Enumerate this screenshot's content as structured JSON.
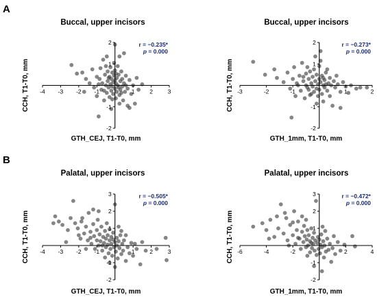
{
  "panel_labels": [
    "A",
    "B"
  ],
  "chart_data": [
    {
      "type": "scatter",
      "title": "Buccal, upper incisors",
      "xlabel": "GTH_CEJ, T1-T0, mm",
      "ylabel": "CCH, T1-T0, mm",
      "xlim": [
        -4,
        3
      ],
      "ylim": [
        -2,
        2
      ],
      "xticks": [
        -4,
        -3,
        -2,
        -1,
        1,
        2,
        3
      ],
      "yticks": [
        -2,
        -1,
        1,
        2
      ],
      "r_text": "r = −0.235*",
      "p_text": "p = 0.000",
      "points": [
        [
          -2.4,
          0.95
        ],
        [
          -2.1,
          0.55
        ],
        [
          -1.8,
          0.6
        ],
        [
          -1.6,
          0.3
        ],
        [
          -1.7,
          -0.3
        ],
        [
          -1.4,
          0.1
        ],
        [
          -1.25,
          0.75
        ],
        [
          -1.15,
          -0.1
        ],
        [
          -1.0,
          0.4
        ],
        [
          -1.0,
          -0.5
        ],
        [
          -0.9,
          -1.45
        ],
        [
          -0.85,
          0.3
        ],
        [
          -0.8,
          0.8
        ],
        [
          -0.75,
          -0.2
        ],
        [
          -0.7,
          0.1
        ],
        [
          -0.65,
          1.2
        ],
        [
          -0.6,
          -0.7
        ],
        [
          -0.55,
          0.5
        ],
        [
          -0.5,
          0.0
        ],
        [
          -0.5,
          0.9
        ],
        [
          -0.45,
          -0.35
        ],
        [
          -0.4,
          0.2
        ],
        [
          -0.4,
          0.65
        ],
        [
          -0.35,
          -0.1
        ],
        [
          -0.3,
          0.4
        ],
        [
          -0.3,
          -0.55
        ],
        [
          -0.25,
          0.05
        ],
        [
          -0.25,
          0.85
        ],
        [
          -0.2,
          -0.25
        ],
        [
          -0.2,
          0.3
        ],
        [
          -0.15,
          0.6
        ],
        [
          -0.15,
          -0.05
        ],
        [
          -0.1,
          0.15
        ],
        [
          -0.1,
          -0.4
        ],
        [
          -0.05,
          0.45
        ],
        [
          -0.05,
          1.05
        ],
        [
          0.0,
          -0.15
        ],
        [
          0.0,
          0.25
        ],
        [
          0.0,
          0.7
        ],
        [
          0.05,
          -0.6
        ],
        [
          0.05,
          0.1
        ],
        [
          0.1,
          0.35
        ],
        [
          0.1,
          -0.3
        ],
        [
          0.15,
          0.9
        ],
        [
          0.15,
          0.0
        ],
        [
          0.2,
          -0.1
        ],
        [
          0.2,
          0.5
        ],
        [
          0.25,
          1.35
        ],
        [
          0.25,
          -0.45
        ],
        [
          0.3,
          0.2
        ],
        [
          0.3,
          -0.2
        ],
        [
          0.35,
          0.65
        ],
        [
          0.4,
          -0.05
        ],
        [
          0.4,
          0.3
        ],
        [
          0.45,
          -0.7
        ],
        [
          0.5,
          0.1
        ],
        [
          0.5,
          1.5
        ],
        [
          0.55,
          -0.3
        ],
        [
          0.6,
          0.45
        ],
        [
          0.7,
          -0.15
        ],
        [
          0.7,
          -0.95
        ],
        [
          0.8,
          0.25
        ],
        [
          0.8,
          -1.05
        ],
        [
          0.9,
          -0.4
        ],
        [
          1.0,
          0.0
        ],
        [
          1.1,
          -0.85
        ],
        [
          1.2,
          0.35
        ],
        [
          1.3,
          -0.2
        ],
        [
          1.5,
          0.05
        ],
        [
          -0.6,
          -0.25
        ],
        [
          -0.35,
          0.35
        ],
        [
          0.05,
          0.55
        ],
        [
          0.35,
          -0.35
        ],
        [
          -0.15,
          -0.65
        ],
        [
          0.6,
          0.0
        ],
        [
          -0.9,
          0.05
        ],
        [
          -0.45,
          1.35
        ],
        [
          0.0,
          1.9
        ],
        [
          -0.2,
          -1.1
        ],
        [
          0.25,
          -0.85
        ]
      ]
    },
    {
      "type": "scatter",
      "title": "Buccal, upper incisors",
      "xlabel": "GTH_1mm, T1-T0, mm",
      "ylabel": "CCH, T1-T0, mm",
      "xlim": [
        -3,
        2
      ],
      "ylim": [
        -2,
        2
      ],
      "xticks": [
        -3,
        -2,
        -1,
        1,
        2
      ],
      "yticks": [
        -2,
        -1,
        1,
        2
      ],
      "r_text": "r = −0.273*",
      "p_text": "p = 0.000",
      "points": [
        [
          -2.5,
          1.1
        ],
        [
          -2.05,
          0.5
        ],
        [
          -1.7,
          0.75
        ],
        [
          -1.6,
          0.35
        ],
        [
          -1.35,
          0.15
        ],
        [
          -1.2,
          0.6
        ],
        [
          -1.1,
          -0.15
        ],
        [
          -1.0,
          0.3
        ],
        [
          -0.95,
          0.85
        ],
        [
          -0.9,
          -0.5
        ],
        [
          -0.85,
          0.1
        ],
        [
          -0.75,
          0.45
        ],
        [
          -0.7,
          -0.25
        ],
        [
          -0.65,
          1.05
        ],
        [
          -0.6,
          0.2
        ],
        [
          -0.55,
          -0.6
        ],
        [
          -0.5,
          0.55
        ],
        [
          -0.5,
          0.0
        ],
        [
          -0.45,
          0.85
        ],
        [
          -0.4,
          -0.2
        ],
        [
          -0.4,
          0.3
        ],
        [
          -0.35,
          0.65
        ],
        [
          -0.3,
          -0.4
        ],
        [
          -0.3,
          0.1
        ],
        [
          -0.25,
          0.4
        ],
        [
          -0.25,
          -0.05
        ],
        [
          -0.2,
          0.75
        ],
        [
          -0.2,
          -0.3
        ],
        [
          -0.15,
          0.2
        ],
        [
          -0.15,
          1.35
        ],
        [
          -0.1,
          -0.15
        ],
        [
          -0.1,
          0.5
        ],
        [
          -0.05,
          0.05
        ],
        [
          -0.05,
          -0.5
        ],
        [
          0.0,
          0.3
        ],
        [
          0.0,
          0.9
        ],
        [
          0.0,
          -0.2
        ],
        [
          0.05,
          0.15
        ],
        [
          0.05,
          1.6
        ],
        [
          0.1,
          -0.4
        ],
        [
          0.1,
          0.45
        ],
        [
          0.15,
          0.0
        ],
        [
          0.15,
          -0.75
        ],
        [
          0.2,
          0.25
        ],
        [
          0.2,
          -0.1
        ],
        [
          0.25,
          0.6
        ],
        [
          0.3,
          -0.25
        ],
        [
          0.35,
          0.1
        ],
        [
          0.4,
          0.35
        ],
        [
          0.4,
          -0.5
        ],
        [
          0.45,
          0.0
        ],
        [
          0.5,
          -0.95
        ],
        [
          0.55,
          0.2
        ],
        [
          0.6,
          -0.1
        ],
        [
          0.7,
          0.05
        ],
        [
          0.8,
          -0.3
        ],
        [
          0.8,
          -1.05
        ],
        [
          0.9,
          0.15
        ],
        [
          1.0,
          -0.05
        ],
        [
          1.1,
          -0.35
        ],
        [
          1.2,
          0.0
        ],
        [
          1.4,
          -0.15
        ],
        [
          1.55,
          -0.1
        ],
        [
          1.8,
          -0.1
        ],
        [
          -0.6,
          0.4
        ],
        [
          -0.35,
          -0.45
        ],
        [
          0.25,
          0.05
        ],
        [
          -0.8,
          0.0
        ],
        [
          -0.1,
          -0.85
        ],
        [
          0.05,
          1.15
        ],
        [
          -1.05,
          -1.5
        ],
        [
          0.3,
          0.75
        ],
        [
          0.65,
          0.45
        ],
        [
          -0.45,
          -0.1
        ],
        [
          0.15,
          0.35
        ]
      ]
    },
    {
      "type": "scatter",
      "title": "Palatal, upper incisors",
      "xlabel": "GTH_CEJ, T1-T0, mm",
      "ylabel": "CCH, T1-T0, mm",
      "xlim": [
        -4,
        3
      ],
      "ylim": [
        -2,
        3
      ],
      "xticks": [
        -4,
        -3,
        -2,
        -1,
        1,
        2,
        3
      ],
      "yticks": [
        -2,
        -1,
        1,
        2,
        3
      ],
      "r_text": "r = −0.505*",
      "p_text": "p = 0.000",
      "points": [
        [
          -3.3,
          1.7
        ],
        [
          -3.1,
          1.4
        ],
        [
          -2.9,
          1.2
        ],
        [
          -2.6,
          0.9
        ],
        [
          -2.3,
          2.6
        ],
        [
          -2.2,
          1.3
        ],
        [
          -2.05,
          1.0
        ],
        [
          -1.9,
          0.4
        ],
        [
          -1.8,
          1.6
        ],
        [
          -1.7,
          0.7
        ],
        [
          -1.6,
          1.1
        ],
        [
          -1.5,
          0.3
        ],
        [
          -1.45,
          1.9
        ],
        [
          -1.35,
          0.8
        ],
        [
          -1.3,
          0.1
        ],
        [
          -1.2,
          1.25
        ],
        [
          -1.15,
          0.55
        ],
        [
          -1.1,
          -0.2
        ],
        [
          -1.0,
          0.9
        ],
        [
          -1.0,
          0.3
        ],
        [
          -0.95,
          1.5
        ],
        [
          -0.9,
          0.0
        ],
        [
          -0.85,
          0.65
        ],
        [
          -0.8,
          0.25
        ],
        [
          -0.75,
          1.1
        ],
        [
          -0.7,
          -0.3
        ],
        [
          -0.65,
          0.5
        ],
        [
          -0.6,
          0.15
        ],
        [
          -0.55,
          0.85
        ],
        [
          -0.5,
          -0.1
        ],
        [
          -0.5,
          0.4
        ],
        [
          -0.45,
          1.3
        ],
        [
          -0.4,
          0.05
        ],
        [
          -0.4,
          0.6
        ],
        [
          -0.35,
          -0.45
        ],
        [
          -0.3,
          0.3
        ],
        [
          -0.3,
          0.95
        ],
        [
          -0.25,
          -0.2
        ],
        [
          -0.2,
          0.5
        ],
        [
          -0.2,
          0.1
        ],
        [
          -0.15,
          -0.6
        ],
        [
          -0.1,
          0.35
        ],
        [
          -0.1,
          0.75
        ],
        [
          -0.05,
          -0.1
        ],
        [
          0.0,
          0.2
        ],
        [
          0.0,
          2.4
        ],
        [
          0.05,
          -0.35
        ],
        [
          0.1,
          0.45
        ],
        [
          0.1,
          0.0
        ],
        [
          0.15,
          -0.75
        ],
        [
          0.2,
          0.25
        ],
        [
          0.25,
          -0.15
        ],
        [
          0.3,
          0.6
        ],
        [
          0.35,
          -0.5
        ],
        [
          0.4,
          0.1
        ],
        [
          0.45,
          -0.3
        ],
        [
          0.5,
          0.3
        ],
        [
          0.6,
          -0.9
        ],
        [
          0.7,
          -0.1
        ],
        [
          0.8,
          -0.45
        ],
        [
          0.9,
          0.15
        ],
        [
          1.0,
          -0.6
        ],
        [
          1.2,
          -0.2
        ],
        [
          1.4,
          -1.1
        ],
        [
          1.7,
          -0.3
        ],
        [
          2.3,
          -0.2
        ],
        [
          2.8,
          0.45
        ],
        [
          2.85,
          -0.85
        ],
        [
          -2.7,
          0.2
        ],
        [
          -3.4,
          1.3
        ],
        [
          -0.9,
          2.0
        ],
        [
          -1.6,
          -0.2
        ],
        [
          -0.3,
          -1.0
        ],
        [
          0.2,
          1.1
        ],
        [
          -1.2,
          2.1
        ],
        [
          -2.0,
          0.6
        ],
        [
          0.6,
          0.6
        ],
        [
          1.1,
          0.1
        ],
        [
          -0.55,
          -0.7
        ],
        [
          -1.85,
          1.4
        ],
        [
          -0.7,
          0.0
        ],
        [
          0.35,
          0.85
        ],
        [
          -1.35,
          0.45
        ],
        [
          0.0,
          -1.25
        ],
        [
          1.5,
          0.2
        ],
        [
          -2.45,
          1.6
        ]
      ]
    },
    {
      "type": "scatter",
      "title": "Palatal, upper incisors",
      "xlabel": "GTH_1mm, T1-T0, mm",
      "ylabel": "CCH, T1-T0, mm",
      "xlim": [
        -6,
        4
      ],
      "ylim": [
        -2,
        3
      ],
      "xticks": [
        -6,
        -4,
        -2,
        2,
        4
      ],
      "yticks": [
        -2,
        -1,
        1,
        2,
        3
      ],
      "r_text": "r = −0.472*",
      "p_text": "p = 0.000",
      "points": [
        [
          -5.0,
          1.1
        ],
        [
          -4.3,
          1.3
        ],
        [
          -4.0,
          0.9
        ],
        [
          -3.7,
          1.5
        ],
        [
          -3.4,
          0.5
        ],
        [
          -3.1,
          1.0
        ],
        [
          -2.9,
          2.4
        ],
        [
          -2.7,
          0.7
        ],
        [
          -2.5,
          1.6
        ],
        [
          -2.4,
          0.3
        ],
        [
          -2.2,
          1.2
        ],
        [
          -2.0,
          0.6
        ],
        [
          -1.9,
          2.0
        ],
        [
          -1.8,
          0.1
        ],
        [
          -1.7,
          0.9
        ],
        [
          -1.6,
          1.4
        ],
        [
          -1.5,
          0.4
        ],
        [
          -1.4,
          -0.2
        ],
        [
          -1.3,
          0.8
        ],
        [
          -1.2,
          0.2
        ],
        [
          -1.15,
          1.15
        ],
        [
          -1.1,
          0.55
        ],
        [
          -1.0,
          -0.1
        ],
        [
          -0.95,
          0.35
        ],
        [
          -0.9,
          0.9
        ],
        [
          -0.85,
          0.0
        ],
        [
          -0.8,
          0.6
        ],
        [
          -0.7,
          -0.4
        ],
        [
          -0.7,
          0.25
        ],
        [
          -0.6,
          1.0
        ],
        [
          -0.55,
          -0.15
        ],
        [
          -0.5,
          0.45
        ],
        [
          -0.45,
          0.1
        ],
        [
          -0.4,
          0.75
        ],
        [
          -0.35,
          -0.3
        ],
        [
          -0.3,
          0.3
        ],
        [
          -0.25,
          2.6
        ],
        [
          -0.2,
          -0.55
        ],
        [
          -0.15,
          0.15
        ],
        [
          -0.1,
          0.5
        ],
        [
          -0.05,
          -0.2
        ],
        [
          0.0,
          0.35
        ],
        [
          0.05,
          -0.45
        ],
        [
          0.1,
          0.05
        ],
        [
          0.15,
          0.65
        ],
        [
          0.2,
          -0.1
        ],
        [
          0.3,
          0.25
        ],
        [
          0.35,
          -0.7
        ],
        [
          0.4,
          0.0
        ],
        [
          0.5,
          -0.35
        ],
        [
          0.6,
          0.4
        ],
        [
          0.7,
          -0.25
        ],
        [
          0.8,
          0.1
        ],
        [
          0.9,
          -0.95
        ],
        [
          1.0,
          -0.15
        ],
        [
          1.2,
          -0.5
        ],
        [
          1.4,
          0.2
        ],
        [
          1.6,
          -0.3
        ],
        [
          1.9,
          0.05
        ],
        [
          2.5,
          0.55
        ],
        [
          2.7,
          -0.05
        ],
        [
          -0.4,
          -1.2
        ],
        [
          -3.8,
          0.4
        ],
        [
          -2.6,
          1.9
        ],
        [
          -1.3,
          1.7
        ],
        [
          -0.9,
          -0.6
        ],
        [
          0.2,
          -1.5
        ],
        [
          0.25,
          1.1
        ],
        [
          -1.6,
          0.45
        ],
        [
          -2.3,
          0.0
        ],
        [
          -0.6,
          0.15
        ],
        [
          1.1,
          0.55
        ],
        [
          -1.0,
          1.5
        ],
        [
          0.45,
          0.85
        ],
        [
          -2.0,
          1.35
        ],
        [
          -3.2,
          1.7
        ]
      ]
    }
  ]
}
